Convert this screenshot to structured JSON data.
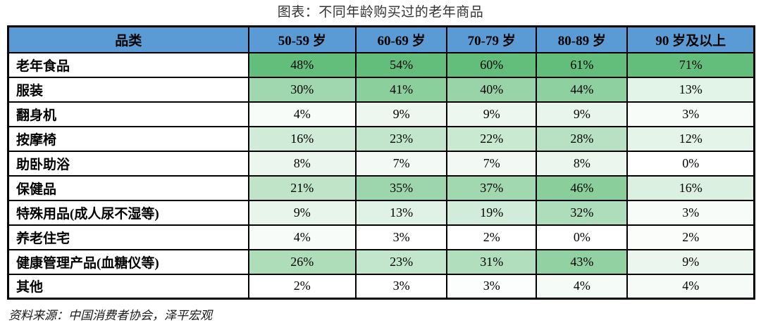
{
  "chart_data": {
    "type": "table",
    "title": "图表：不同年龄购买过的老年商品",
    "columns": [
      "品类",
      "50-59 岁",
      "60-69 岁",
      "70-79 岁",
      "80-89 岁",
      "90 岁及以上"
    ],
    "rows": [
      {
        "category": "老年食品",
        "values": [
          48,
          54,
          60,
          61,
          71
        ]
      },
      {
        "category": "服装",
        "values": [
          30,
          41,
          40,
          44,
          13
        ]
      },
      {
        "category": "翻身机",
        "values": [
          4,
          9,
          9,
          9,
          3
        ]
      },
      {
        "category": "按摩椅",
        "values": [
          16,
          23,
          22,
          28,
          12
        ]
      },
      {
        "category": "助卧助浴",
        "values": [
          8,
          7,
          7,
          8,
          0
        ]
      },
      {
        "category": "保健品",
        "values": [
          21,
          35,
          37,
          46,
          16
        ]
      },
      {
        "category": "特殊用品(成人尿不湿等)",
        "values": [
          9,
          13,
          19,
          32,
          3
        ]
      },
      {
        "category": "养老住宅",
        "values": [
          4,
          3,
          2,
          0,
          2
        ]
      },
      {
        "category": "健康管理产品(血糖仪等)",
        "values": [
          26,
          23,
          31,
          43,
          9
        ]
      },
      {
        "category": "其他",
        "values": [
          2,
          3,
          3,
          4,
          4
        ]
      }
    ],
    "value_suffix": "%",
    "layout": {
      "grid": "on",
      "legend": "none"
    },
    "color_scale": {
      "mode": "per-column",
      "min_color": "#FFFFFF",
      "max_color": "#63BE7B",
      "header_bg": "#5B9BD5",
      "border_color": "#000000"
    },
    "source_note": "资料来源：中国消费者协会，泽平宏观"
  }
}
